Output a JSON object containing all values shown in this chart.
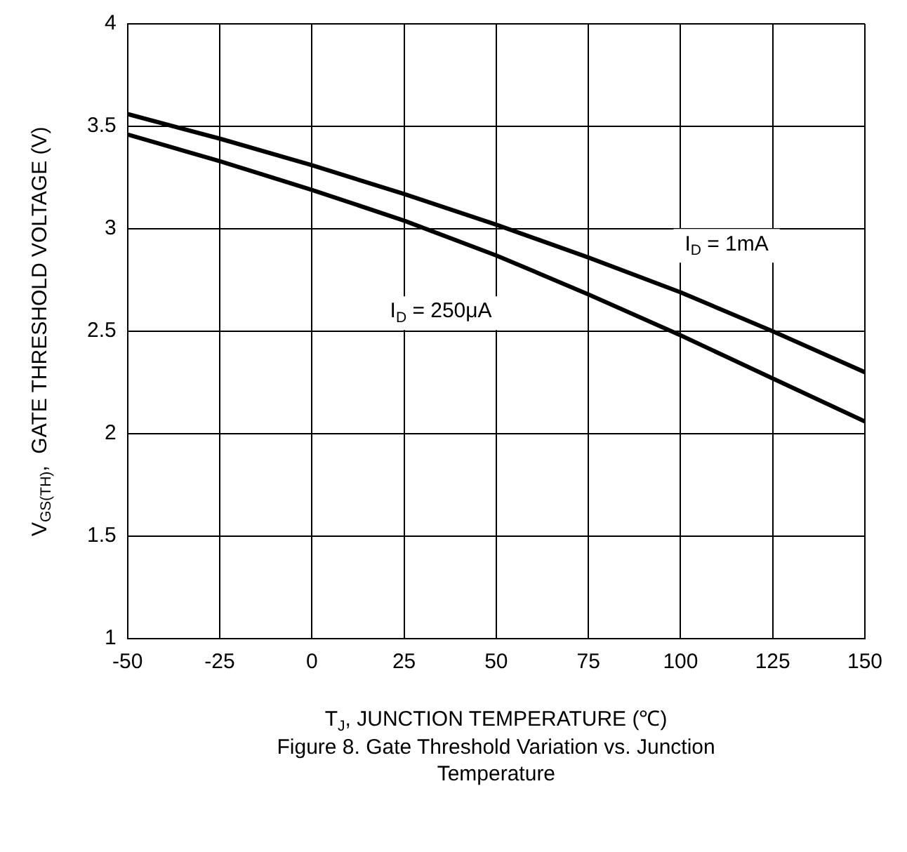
{
  "chart_data": {
    "type": "line",
    "title": "Figure 8. Gate Threshold Variation vs. Junction Temperature",
    "xlabel": "T$_{J}$, JUNCTION TEMPERATURE (℃)",
    "ylabel": "V$_{GS(TH)}$,  GATE THRESHOLD VOLTAGE (V)",
    "x": [
      -50,
      -25,
      0,
      25,
      50,
      75,
      100,
      125,
      150
    ],
    "series": [
      {
        "name": "I$_{D}$ = 1mA",
        "color": "#000000",
        "values": [
          3.56,
          3.44,
          3.31,
          3.17,
          3.02,
          2.86,
          2.69,
          2.5,
          2.3
        ]
      },
      {
        "name": "I$_{D}$ = 250μA",
        "color": "#000000",
        "values": [
          3.46,
          3.33,
          3.19,
          3.04,
          2.87,
          2.68,
          2.48,
          2.27,
          2.06
        ]
      }
    ],
    "xlim": [
      -50,
      150
    ],
    "xticks": [
      -50,
      -25,
      0,
      25,
      50,
      75,
      100,
      125,
      150
    ],
    "ylim": [
      1,
      4
    ],
    "yticks": [
      1,
      1.5,
      2,
      2.5,
      3,
      3.5,
      4
    ],
    "grid": true,
    "legend": false,
    "marker": "none",
    "line_style": "solid"
  }
}
